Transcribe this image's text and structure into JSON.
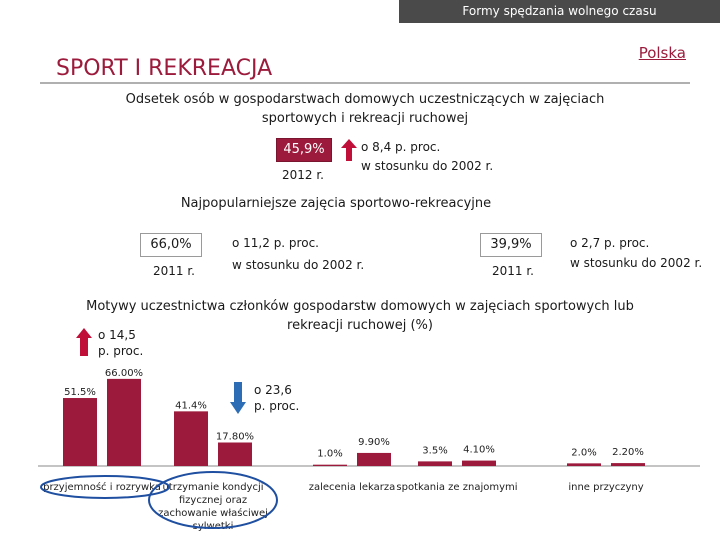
{
  "header": {
    "bar_title": "Formy spędzania wolnego czasu",
    "country": "Polska",
    "section_title": "SPORT I REKREACJA"
  },
  "stat1": {
    "heading": "Odsetek osób w gospodarstwach domowych uczestniczących w zajęciach sportowych i rekreacji ruchowej",
    "value": "45,9%",
    "year": "2012 r.",
    "change_line1": "o 8,4 p. proc.",
    "change_line2": "w stosunku do 2002 r."
  },
  "stat2": {
    "heading": "Najpopularniejsze zajęcia sportowo-rekreacyjne",
    "left": {
      "value": "66,0%",
      "year": "2011 r.",
      "change_line1": "o  11,2 p. proc.",
      "change_line2": "w stosunku do 2002 r."
    },
    "right": {
      "value": "39,9%",
      "year": "2011 r.",
      "change_line1": "o  2,7 p. proc.",
      "change_line2": "w stosunku do 2002 r."
    }
  },
  "chart_data": {
    "type": "bar",
    "title": "Motywy uczestnictwa członków gospodarstw domowych w zajęciach sportowych lub rekreacji ruchowej (%)",
    "categories": [
      "przyjemność i rozrywka",
      "utrzymanie kondycji fizycznej oraz zachowanie właściwej sylwetki",
      "zalecenia lekarza",
      "spotkania ze znajomymi",
      "inne przyczyny"
    ],
    "series": [
      {
        "values": [
          51.5,
          41.4,
          1.0,
          3.5,
          2.0
        ],
        "labels": [
          "51.5%",
          "41.4%",
          "1.0%",
          "3.5%",
          "2.0%"
        ],
        "color": "#9c1b3c"
      },
      {
        "values": [
          66.0,
          17.8,
          9.9,
          4.1,
          2.2
        ],
        "labels": [
          "66.00%",
          "17.80%",
          "9.90%",
          "4.10%",
          "2.20%"
        ],
        "color": "#9c1b3c"
      }
    ],
    "annotations": [
      {
        "category": 0,
        "direction": "up",
        "line1": "o  14,5",
        "line2": "p. proc."
      },
      {
        "category": 1,
        "direction": "down",
        "line1": "o  23,6",
        "line2": "p. proc."
      }
    ],
    "highlighted_categories": [
      0,
      1
    ]
  },
  "colors": {
    "accent": "#9c1b3c",
    "up_arrow": "#c0103a",
    "down_arrow": "#2d6db5",
    "highlight_ring": "#1f4fa0"
  }
}
